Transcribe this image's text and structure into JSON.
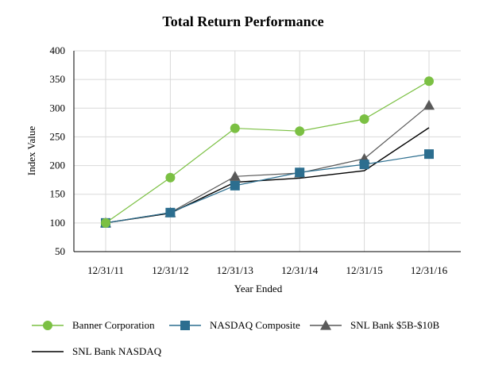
{
  "chart_data": {
    "type": "line",
    "title": "Total Return Performance",
    "xlabel": "Year Ended",
    "ylabel": "Index Value",
    "ylim": [
      50,
      400
    ],
    "yticks": [
      50,
      100,
      150,
      200,
      250,
      300,
      350,
      400
    ],
    "categories": [
      "12/31/11",
      "12/31/12",
      "12/31/13",
      "12/31/14",
      "12/31/15",
      "12/31/16"
    ],
    "grid": true,
    "legend_position": "bottom",
    "series": [
      {
        "name": "Banner Corporation",
        "values": [
          100,
          179,
          265,
          260,
          281,
          347
        ],
        "color": "#7bc043",
        "marker": "circle"
      },
      {
        "name": "NASDAQ Composite",
        "values": [
          100,
          118,
          165,
          188,
          202,
          220
        ],
        "color": "#2c6e8f",
        "marker": "square"
      },
      {
        "name": "SNL Bank $5B-$10B",
        "values": [
          100,
          118,
          181,
          187,
          212,
          305
        ],
        "color": "#595959",
        "marker": "triangle"
      },
      {
        "name": "SNL Bank NASDAQ",
        "values": [
          100,
          117,
          171,
          178,
          191,
          266
        ],
        "color": "#000000",
        "marker": "none"
      }
    ]
  }
}
